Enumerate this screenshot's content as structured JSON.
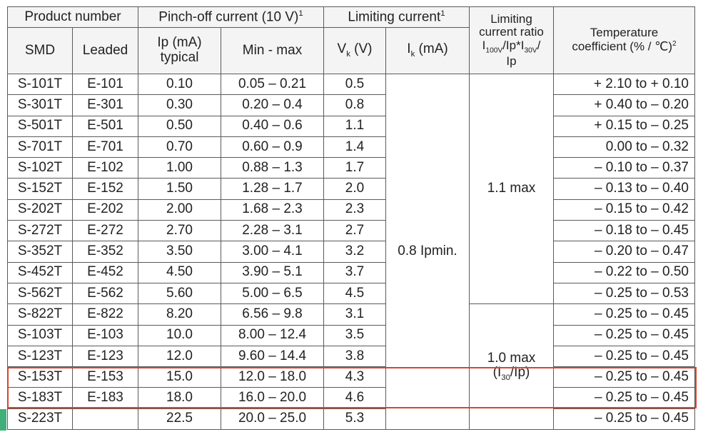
{
  "header": {
    "product_number": "Product number",
    "pinch_off": "Pinch-off current (10 V)",
    "pinch_off_sup": "1",
    "limiting_current": "Limiting current",
    "limiting_current_sup": "1",
    "ratio_line1": "Limiting",
    "ratio_line2": "current ratio",
    "ratio_I": "I",
    "ratio_sub1": "100V",
    "ratio_mid": "/Ip*I",
    "ratio_sub2": "30V",
    "ratio_slash": "/",
    "ratio_line4": "Ip",
    "temp_line1": "Temperature",
    "temp_line2": "coefficient (% / ℃)",
    "temp_sup": "2",
    "smd": "SMD",
    "leaded": "Leaded",
    "ip_line1": "Ip (mA)",
    "ip_line2": "typical",
    "minmax": "Min - max",
    "vk_V": "V",
    "vk_sub": "k",
    "vk_unit": " (V)",
    "ik_I": "I",
    "ik_sub": "k",
    "ik_unit": " (mA)"
  },
  "rows": [
    {
      "smd": "S-101T",
      "leaded": "E-101",
      "ip": "0.10",
      "minmax": "0.05 – 0.21",
      "vk": "0.5",
      "temp": "+ 2.10 to + 0.10"
    },
    {
      "smd": "S-301T",
      "leaded": "E-301",
      "ip": "0.30",
      "minmax": "0.20 – 0.4",
      "vk": "0.8",
      "temp": "+ 0.40 to – 0.20"
    },
    {
      "smd": "S-501T",
      "leaded": "E-501",
      "ip": "0.50",
      "minmax": "0.40 – 0.6",
      "vk": "1.1",
      "temp": "+ 0.15 to – 0.25"
    },
    {
      "smd": "S-701T",
      "leaded": "E-701",
      "ip": "0.70",
      "minmax": "0.60 – 0.9",
      "vk": "1.4",
      "temp": "0.00 to – 0.32"
    },
    {
      "smd": "S-102T",
      "leaded": "E-102",
      "ip": "1.00",
      "minmax": "0.88 – 1.3",
      "vk": "1.7",
      "temp": "– 0.10 to – 0.37"
    },
    {
      "smd": "S-152T",
      "leaded": "E-152",
      "ip": "1.50",
      "minmax": "1.28 – 1.7",
      "vk": "2.0",
      "temp": "– 0.13 to – 0.40"
    },
    {
      "smd": "S-202T",
      "leaded": "E-202",
      "ip": "2.00",
      "minmax": "1.68 – 2.3",
      "vk": "2.3",
      "temp": "– 0.15 to – 0.42"
    },
    {
      "smd": "S-272T",
      "leaded": "E-272",
      "ip": "2.70",
      "minmax": "2.28 – 3.1",
      "vk": "2.7",
      "temp": "– 0.18 to – 0.45"
    },
    {
      "smd": "S-352T",
      "leaded": "E-352",
      "ip": "3.50",
      "minmax": "3.00 – 4.1",
      "vk": "3.2",
      "temp": "– 0.20 to – 0.47"
    },
    {
      "smd": "S-452T",
      "leaded": "E-452",
      "ip": "4.50",
      "minmax": "3.90 – 5.1",
      "vk": "3.7",
      "temp": "– 0.22 to – 0.50"
    },
    {
      "smd": "S-562T",
      "leaded": "E-562",
      "ip": "5.60",
      "minmax": "5.00 – 6.5",
      "vk": "4.5",
      "temp": "– 0.25 to – 0.53"
    },
    {
      "smd": "S-822T",
      "leaded": "E-822",
      "ip": "8.20",
      "minmax": "6.56 – 9.8",
      "vk": "3.1",
      "temp": "– 0.25 to – 0.45"
    },
    {
      "smd": "S-103T",
      "leaded": "E-103",
      "ip": "10.0",
      "minmax": "8.00 – 12.4",
      "vk": "3.5",
      "temp": "– 0.25 to – 0.45"
    },
    {
      "smd": "S-123T",
      "leaded": "E-123",
      "ip": "12.0",
      "minmax": "9.60 – 14.4",
      "vk": "3.8",
      "temp": "– 0.25 to – 0.45"
    },
    {
      "smd": "S-153T",
      "leaded": "E-153",
      "ip": "15.0",
      "minmax": "12.0 – 18.0",
      "vk": "4.3",
      "temp": "– 0.25 to – 0.45"
    },
    {
      "smd": "S-183T",
      "leaded": "E-183",
      "ip": "18.0",
      "minmax": "16.0 – 20.0",
      "vk": "4.6",
      "temp": "– 0.25 to – 0.45"
    },
    {
      "smd": "S-223T",
      "leaded": "",
      "ip": "22.5",
      "minmax": "20.0 – 25.0",
      "vk": "5.3",
      "temp": "– 0.25 to – 0.45"
    }
  ],
  "merged": {
    "ik_value": "0.8 Ipmin.",
    "ratio_group1": "1.1 max",
    "ratio_group2_line1": "1.0 max",
    "ratio_group2_open": "(I",
    "ratio_group2_sub": "30",
    "ratio_group2_close": "/Ip)"
  },
  "colors": {
    "highlight_border": "#d8452e",
    "corner_mark": "#3fb07a"
  }
}
